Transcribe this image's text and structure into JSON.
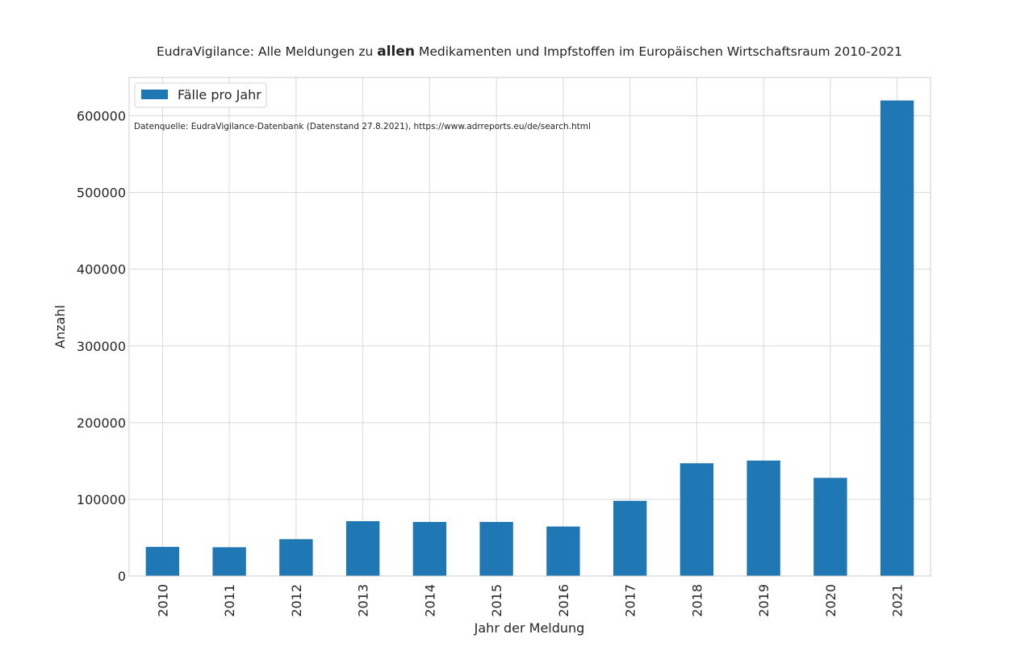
{
  "chart_data": {
    "type": "bar",
    "title": {
      "pre": "EudraVigilance: Alle Meldungen zu ",
      "strong": "allen",
      "post": " Medikamenten und Impfstoffen im Europäischen Wirtschaftsraum 2010-2021"
    },
    "xlabel": "Jahr der Meldung",
    "ylabel": "Anzahl",
    "annotation": "Datenquelle: EudraVigilance-Datenbank (Datenstand 27.8.2021), https://www.adrreports.eu/de/search.html",
    "categories": [
      "2010",
      "2011",
      "2012",
      "2013",
      "2014",
      "2015",
      "2016",
      "2017",
      "2018",
      "2019",
      "2020",
      "2021"
    ],
    "series": [
      {
        "name": "Fälle pro Jahr",
        "color": "#1f77b4",
        "values": [
          38000,
          37500,
          48000,
          71500,
          70500,
          70500,
          64500,
          98000,
          147000,
          150500,
          128000,
          620000
        ]
      }
    ],
    "ylim": [
      0,
      650000
    ],
    "yticks": [
      0,
      100000,
      200000,
      300000,
      400000,
      500000,
      600000
    ],
    "ytick_labels": [
      "0",
      "100000",
      "200000",
      "300000",
      "400000",
      "500000",
      "600000"
    ],
    "grid": true,
    "legend_position": "top-left",
    "colors": {
      "bar": "#1f77b4",
      "grid": "#d9d9d9",
      "frame": "#cccccc"
    }
  }
}
